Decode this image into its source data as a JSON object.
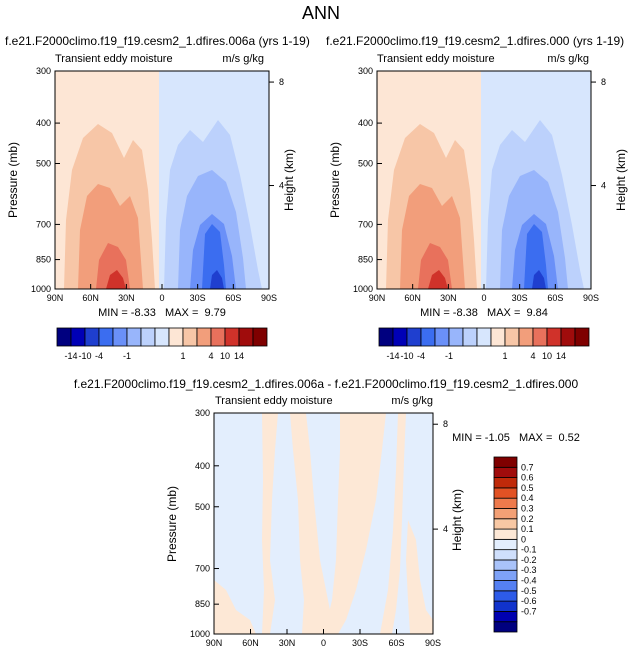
{
  "figure": {
    "title": "ANN"
  },
  "colors": {
    "main": [
      "#00007f",
      "#0000b6",
      "#1f3fcf",
      "#3b6df0",
      "#6a90f8",
      "#98b5fb",
      "#bcd1fc",
      "#d7e6fd",
      "#fde6d5",
      "#f7c6a7",
      "#f29e7b",
      "#e8715c",
      "#d0322a",
      "#a00c0c",
      "#7f0000"
    ],
    "diff": [
      "#00007f",
      "#0000b0",
      "#1133cc",
      "#2d5be8",
      "#5580f2",
      "#7ea2f7",
      "#a9c3fa",
      "#cfdffc",
      "#e3eefd",
      "#fde8d6",
      "#f8c8a4",
      "#f3a075",
      "#ee7a4c",
      "#e25224",
      "#c02a0a",
      "#a00c0c",
      "#7f0000"
    ]
  },
  "chart_data": [
    {
      "type": "contour",
      "title": "f.e21.F2000climo.f19_f19.cesm2_1.dfires.006a (yrs 1-19)",
      "left_string": "Transient eddy moisture",
      "right_string": "m/s g/kg",
      "ylabel": "Pressure (mb)",
      "y2label": "Height (km)",
      "x_ticks": [
        "90N",
        "60N",
        "30N",
        "0",
        "30S",
        "60S",
        "90S"
      ],
      "y_ticks": [
        "300",
        "400",
        "500",
        "700",
        "850",
        "1000"
      ],
      "y2_ticks": [
        "8",
        "4"
      ],
      "xlim": [
        90,
        -90
      ],
      "ylim": [
        1000,
        300
      ],
      "min_max": "MIN = -8.33   MAX =  9.79",
      "levels": [
        "-14",
        "-10",
        "-4",
        "-1",
        "1",
        "4",
        "10",
        "14"
      ],
      "extrema": {
        "min": -8.33,
        "max": 9.79
      }
    },
    {
      "type": "contour",
      "title": "f.e21.F2000climo.f19_f19.cesm2_1.dfires.000 (yrs 1-19)",
      "left_string": "Transient eddy moisture",
      "right_string": "m/s g/kg",
      "ylabel": "Pressure (mb)",
      "y2label": "Height (km)",
      "x_ticks": [
        "90N",
        "60N",
        "30N",
        "0",
        "30S",
        "60S",
        "90S"
      ],
      "y_ticks": [
        "300",
        "400",
        "500",
        "700",
        "850",
        "1000"
      ],
      "y2_ticks": [
        "8",
        "4"
      ],
      "xlim": [
        90,
        -90
      ],
      "ylim": [
        1000,
        300
      ],
      "min_max": "MIN = -8.38   MAX =  9.84",
      "levels": [
        "-14",
        "-10",
        "-4",
        "-1",
        "1",
        "4",
        "10",
        "14"
      ],
      "extrema": {
        "min": -8.38,
        "max": 9.84
      }
    },
    {
      "type": "contour",
      "title": "f.e21.F2000climo.f19_f19.cesm2_1.dfires.006a - f.e21.F2000climo.f19_f19.cesm2_1.dfires.000",
      "left_string": "Transient eddy moisture",
      "right_string": "m/s g/kg",
      "ylabel": "Pressure (mb)",
      "y2label": "Height (km)",
      "x_ticks": [
        "90N",
        "60N",
        "30N",
        "0",
        "30S",
        "60S",
        "90S"
      ],
      "y_ticks": [
        "300",
        "400",
        "500",
        "700",
        "850",
        "1000"
      ],
      "y2_ticks": [
        "8",
        "4"
      ],
      "xlim": [
        90,
        -90
      ],
      "ylim": [
        1000,
        300
      ],
      "min_max": "MIN = -1.05   MAX =  0.52",
      "levels": [
        "0.7",
        "0.6",
        "0.5",
        "0.4",
        "0.3",
        "0.2",
        "0.1",
        "0",
        "-0.1",
        "-0.2",
        "-0.3",
        "-0.4",
        "-0.5",
        "-0.6",
        "-0.7"
      ],
      "extrema": {
        "min": -1.05,
        "max": 0.52
      }
    }
  ]
}
